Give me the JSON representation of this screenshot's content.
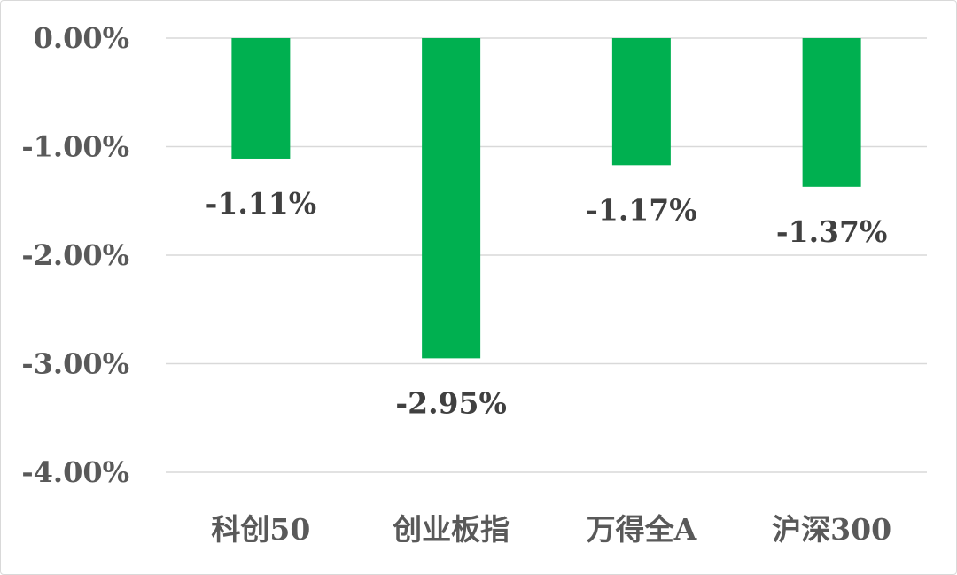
{
  "chart_data": {
    "type": "bar",
    "title": "",
    "xlabel": "",
    "ylabel": "",
    "categories": [
      "科创50",
      "创业板指",
      "万得全A",
      "沪深300"
    ],
    "values": [
      -1.11,
      -2.95,
      -1.17,
      -1.37
    ],
    "data_labels": [
      "-1.11%",
      "-2.95%",
      "-1.17%",
      "-1.37%"
    ],
    "ylim": [
      -4.0,
      0.0
    ],
    "yticks": [
      0,
      -1,
      -2,
      -3,
      -4
    ],
    "ytick_labels": [
      "0.00%",
      "-1.00%",
      "-2.00%",
      "-3.00%",
      "-4.00%"
    ],
    "grid": true,
    "legend": "none",
    "bar_color": "#00b050",
    "gridline_color": "#d9d9d9"
  }
}
